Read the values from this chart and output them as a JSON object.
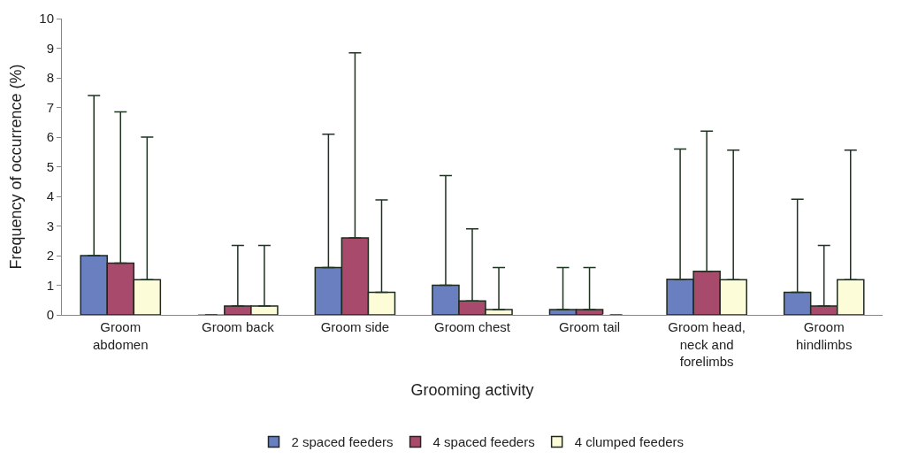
{
  "chart_data": {
    "type": "bar",
    "xlabel": "Grooming activity",
    "ylabel": "Frequency of occurrence (%)",
    "categories": [
      "Groom abdomen",
      "Groom back",
      "Groom side",
      "Groom chest",
      "Groom tail",
      "Groom head, neck and forelimbs",
      "Groom hindlimbs"
    ],
    "series": [
      {
        "name": "2 spaced feeders",
        "color": "#6a7fc0",
        "values": [
          2.0,
          0,
          1.6,
          1.0,
          0.18,
          1.2,
          0.76
        ],
        "errors": [
          [
            2.0,
            7.4
          ],
          null,
          [
            1.6,
            6.1
          ],
          [
            1.0,
            4.7
          ],
          [
            0.18,
            1.6
          ],
          [
            1.2,
            5.6
          ],
          [
            0.76,
            3.9
          ]
        ]
      },
      {
        "name": "4 spaced feeders",
        "color": "#a84a6c",
        "values": [
          1.75,
          0.3,
          2.6,
          0.47,
          0.18,
          1.47,
          0.3
        ],
        "errors": [
          [
            1.75,
            6.85
          ],
          [
            0.3,
            2.34
          ],
          [
            2.6,
            8.84
          ],
          [
            0.47,
            2.9
          ],
          [
            0.18,
            1.6
          ],
          [
            1.47,
            6.2
          ],
          [
            0.3,
            2.34
          ]
        ]
      },
      {
        "name": "4 clumped feeders",
        "color": "#fdfcd8",
        "values": [
          1.19,
          0.3,
          0.76,
          0.18,
          0,
          1.19,
          1.19
        ],
        "errors": [
          [
            1.19,
            6.0
          ],
          [
            0.3,
            2.34
          ],
          [
            0.76,
            3.88
          ],
          [
            0.18,
            1.6
          ],
          null,
          [
            1.19,
            5.56
          ],
          [
            1.19,
            5.56
          ]
        ]
      }
    ],
    "ylim": [
      0,
      10
    ],
    "yticks": [
      0,
      1,
      2,
      3,
      4,
      5,
      6,
      7,
      8,
      9,
      10
    ],
    "legend": "bottom"
  }
}
